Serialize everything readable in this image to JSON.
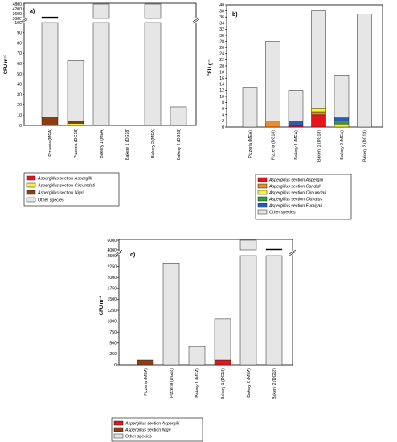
{
  "colors": {
    "aspergilli": "#e8141b",
    "candidi": "#f08a24",
    "circumdati": "#f7f236",
    "nigri": "#8b3d16",
    "clavatus": "#2aa33a",
    "fumigati": "#2a5bb8",
    "other": "#e6e6e6",
    "outline": "#222222"
  },
  "chart_data": [
    {
      "type": "bar",
      "panel_label": "a)",
      "ylabel": "CFU m⁻³",
      "categories": [
        "Pizzeria (MEA)",
        "Pizzeria (DG18)",
        "Bakery 1 (MEA)",
        "Bakery 1 (DG18)",
        "Bakery 2 (MEA)",
        "Bakery 2 (DG18)"
      ],
      "y_axis_break": {
        "lower_range": [
          0,
          100
        ],
        "upper_range": [
          3000,
          4800
        ],
        "lower_ticks": [
          "0",
          "10",
          "20",
          "30",
          "40",
          "50",
          "60",
          "70",
          "80",
          "90",
          "100"
        ],
        "upper_ticks": [
          "3000",
          "3600",
          "4200",
          "4800"
        ]
      },
      "series": [
        {
          "name": "Aspergillus section Aspergilli",
          "color_key": "aspergilli",
          "values": [
            0,
            0,
            0,
            0,
            0,
            0
          ]
        },
        {
          "name": "Aspergillus section Circumdati",
          "color_key": "circumdati",
          "values": [
            0,
            2,
            0,
            0,
            0,
            0
          ]
        },
        {
          "name": "Aspergillus section Nigri",
          "color_key": "nigri",
          "values": [
            8,
            2,
            0,
            0,
            0,
            0
          ]
        },
        {
          "name": "Other species",
          "color_key": "other",
          "values": [
            3150,
            59,
            4800,
            0,
            4800,
            18
          ]
        }
      ],
      "totals": [
        3158,
        63,
        4800,
        0,
        4800,
        18
      ],
      "legend": {
        "position": "bottom-left",
        "entries": [
          {
            "prefix": "Aspergillus",
            "suffix": " section ",
            "section": "Aspergilli",
            "color_key": "aspergilli"
          },
          {
            "prefix": "Aspergillus",
            "suffix": " section ",
            "section": "Circumdati",
            "color_key": "circumdati"
          },
          {
            "prefix": "Aspergillus",
            "suffix": " section ",
            "section": "Nigri",
            "color_key": "nigri"
          },
          {
            "prefix": "",
            "suffix": "Other species",
            "section": "",
            "color_key": "other"
          }
        ]
      }
    },
    {
      "type": "bar",
      "panel_label": "b)",
      "ylabel": "CFU g⁻¹",
      "categories": [
        "Pizzeria (MEA)",
        "Pizzeria (DG18)",
        "Bakery 1 (MEA)",
        "Bakery 1 (DG18)",
        "Bakery 2 (MEA)",
        "Bakery 2 (DG18)"
      ],
      "ylim": [
        0,
        40
      ],
      "yticks": [
        "0",
        "2",
        "4",
        "6",
        "8",
        "10",
        "12",
        "14",
        "16",
        "18",
        "20",
        "22",
        "24",
        "26",
        "28",
        "30",
        "32",
        "34",
        "36",
        "38",
        "40"
      ],
      "series": [
        {
          "name": "Aspergillus section Aspergilli",
          "color_key": "aspergilli",
          "values": [
            0,
            0,
            0.5,
            4,
            0,
            0
          ]
        },
        {
          "name": "Aspergillus section Candidi",
          "color_key": "candidi",
          "values": [
            0,
            2,
            0,
            1,
            0,
            0
          ]
        },
        {
          "name": "Aspergillus section Circumdati",
          "color_key": "circumdati",
          "values": [
            0,
            0,
            0,
            1,
            1,
            0
          ]
        },
        {
          "name": "Aspergillus section Clavatus",
          "color_key": "clavatus",
          "values": [
            0,
            0,
            0,
            0,
            1,
            0
          ]
        },
        {
          "name": "Aspergillus section Fumigati",
          "color_key": "fumigati",
          "values": [
            0,
            0,
            1.5,
            0,
            1,
            0
          ]
        },
        {
          "name": "Other species",
          "color_key": "other",
          "values": [
            13,
            26,
            10,
            32,
            14,
            37
          ]
        }
      ],
      "totals": [
        13,
        28,
        12,
        38,
        17,
        37
      ],
      "legend": {
        "position": "bottom",
        "entries": [
          {
            "prefix": "Aspergillus",
            "suffix": " section ",
            "section": "Aspergilli",
            "color_key": "aspergilli"
          },
          {
            "prefix": "Aspergillus",
            "suffix": " section ",
            "section": "Candidi",
            "color_key": "candidi"
          },
          {
            "prefix": "Aspergillus",
            "suffix": " section ",
            "section": "Circumdati",
            "color_key": "circumdati"
          },
          {
            "prefix": "Aspergillus",
            "suffix": " section ",
            "section": "Clavatus",
            "color_key": "clavatus"
          },
          {
            "prefix": "Aspergillus",
            "suffix": " section ",
            "section": "Fumigati",
            "color_key": "fumigati"
          },
          {
            "prefix": "",
            "suffix": "Other species",
            "section": "",
            "color_key": "other"
          }
        ]
      }
    },
    {
      "type": "bar",
      "panel_label": "c)",
      "ylabel": "CFU m⁻³",
      "categories": [
        "Pizzeria (MEA)",
        "Pizzeria (DG18)",
        "Bakery 1 (MEA)",
        "Bakery 1 (DG18)",
        "Bakery 2 (MEA)",
        "Bakery 2 (DG18)"
      ],
      "y_axis_break": {
        "lower_range": [
          0,
          2500
        ],
        "upper_range": [
          4000,
          6000
        ],
        "lower_ticks": [
          "0",
          "250",
          "500",
          "750",
          "1000",
          "1250",
          "1500",
          "1750",
          "2000",
          "2250",
          "2500"
        ],
        "upper_ticks": [
          "4000",
          "6000"
        ]
      },
      "series": [
        {
          "name": "Aspergillus section Aspergilli",
          "color_key": "aspergilli",
          "values": [
            0,
            0,
            0,
            110,
            0,
            0
          ]
        },
        {
          "name": "Aspergillus section Nigri",
          "color_key": "nigri",
          "values": [
            110,
            0,
            0,
            0,
            0,
            0
          ]
        },
        {
          "name": "Other species",
          "color_key": "other",
          "values": [
            0,
            2330,
            420,
            940,
            6000,
            4100
          ]
        }
      ],
      "totals": [
        110,
        2330,
        420,
        1050,
        6000,
        4100
      ],
      "legend": {
        "position": "bottom-left",
        "entries": [
          {
            "prefix": "Aspergillus",
            "suffix": " section ",
            "section": "Aspergilli",
            "color_key": "aspergilli"
          },
          {
            "prefix": "Aspergillus",
            "suffix": " section ",
            "section": "Nigri",
            "color_key": "nigri"
          },
          {
            "prefix": "",
            "suffix": "Other species",
            "section": "",
            "color_key": "other"
          }
        ]
      }
    }
  ]
}
